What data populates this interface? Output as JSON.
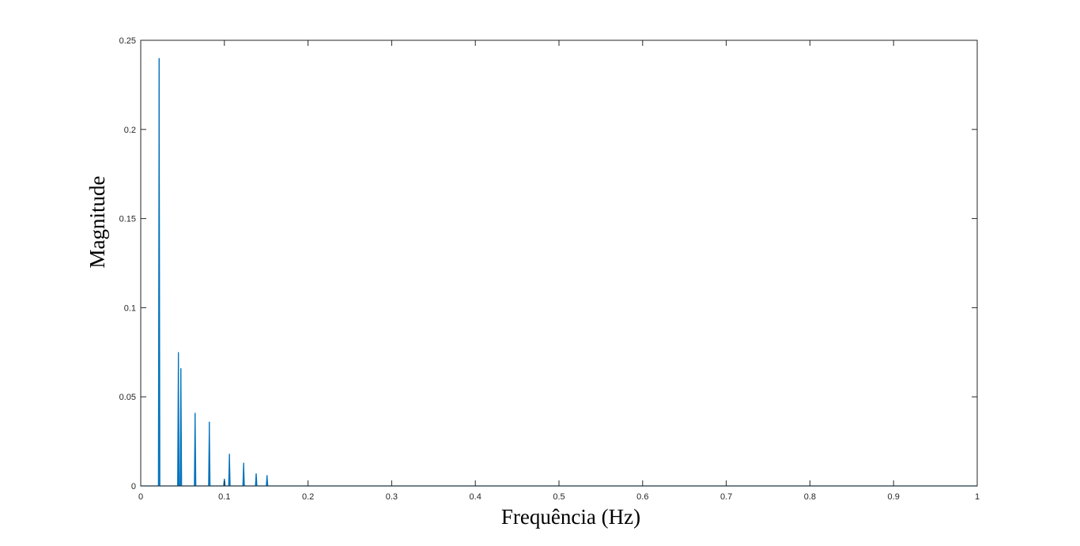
{
  "chart_data": {
    "type": "line",
    "title": "",
    "xlabel": "Frequência (Hz)",
    "ylabel": "Magnitude",
    "xlim": [
      0,
      1
    ],
    "ylim": [
      0,
      0.25
    ],
    "x_ticks": [
      0,
      0.1,
      0.2,
      0.3,
      0.4,
      0.5,
      0.6,
      0.7,
      0.8,
      0.9,
      1
    ],
    "x_tick_labels": [
      "0",
      "0.1",
      "0.2",
      "0.3",
      "0.4",
      "0.5",
      "0.6",
      "0.7",
      "0.8",
      "0.9",
      "1"
    ],
    "y_ticks": [
      0,
      0.05,
      0.1,
      0.15,
      0.2,
      0.25
    ],
    "y_tick_labels": [
      "0",
      "0.05",
      "0.1",
      "0.15",
      "0.2",
      "0.25"
    ],
    "grid": false,
    "legend": "none",
    "series": [
      {
        "color": "#0072BD",
        "peaks": [
          {
            "x": 0.022,
            "y": 0.24
          },
          {
            "x": 0.045,
            "y": 0.075
          },
          {
            "x": 0.048,
            "y": 0.066
          },
          {
            "x": 0.065,
            "y": 0.041
          },
          {
            "x": 0.082,
            "y": 0.036
          },
          {
            "x": 0.1,
            "y": 0.004
          },
          {
            "x": 0.106,
            "y": 0.018
          },
          {
            "x": 0.123,
            "y": 0.013
          },
          {
            "x": 0.138,
            "y": 0.007
          },
          {
            "x": 0.151,
            "y": 0.006
          }
        ],
        "baseline": 0
      }
    ]
  }
}
